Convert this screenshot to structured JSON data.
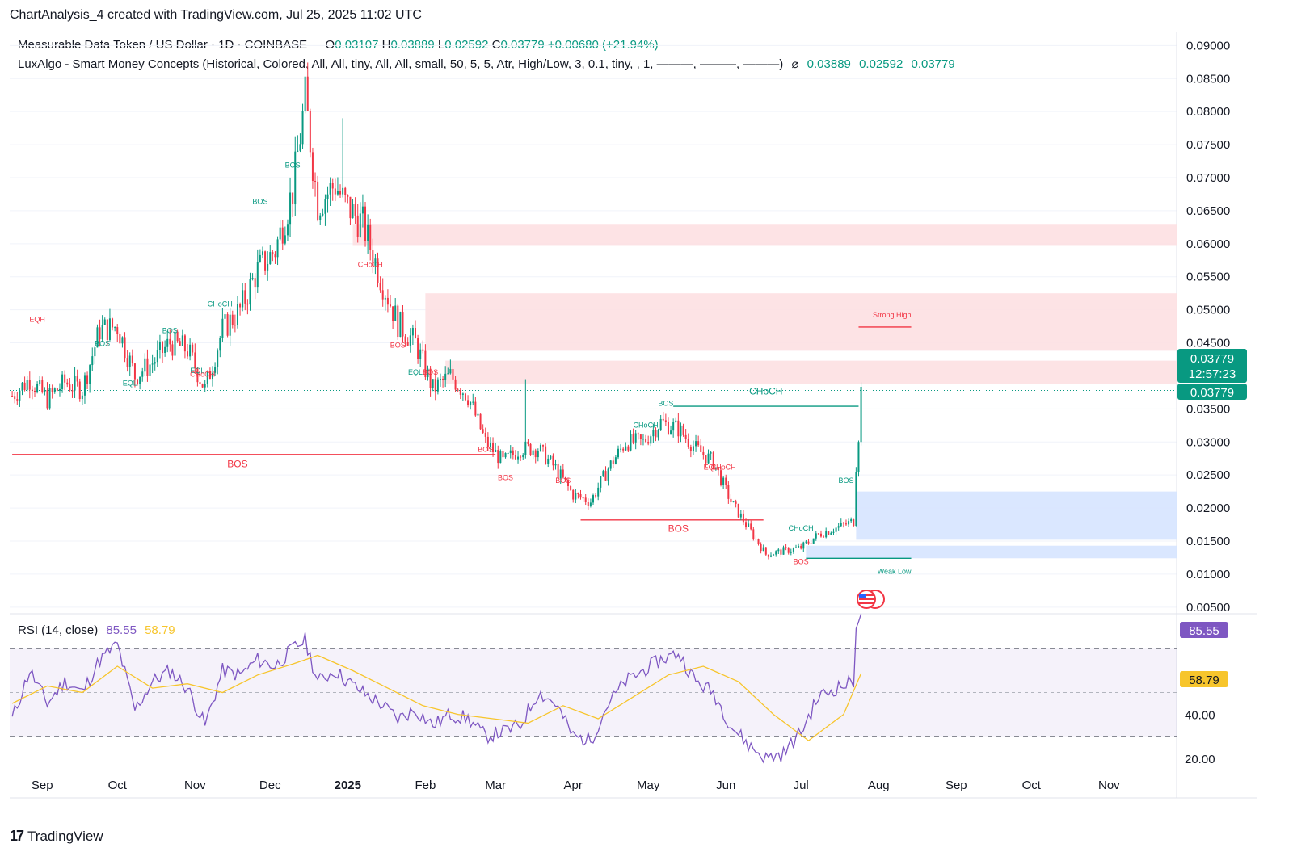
{
  "header": {
    "title": "ChartAnalysis_4 created with TradingView.com, Jul 25, 2025 11:02 UTC"
  },
  "legend": {
    "symbol": "Measurable Data Token / US Dollar · 1D · COINBASE",
    "open_label": "O",
    "open": "0.03107",
    "high_label": "H",
    "high": "0.03889",
    "low_label": "L",
    "low": "0.02592",
    "close_label": "C",
    "close": "0.03779",
    "change": "+0.00680 (+21.94%)",
    "indicator": "LuxAlgo - Smart Money Concepts (Historical, Colored, All, All, tiny, All, All, small, 50, 5, 5, Atr, High/Low, 3, 0.1, tiny, , 1, ———, ———, ———)",
    "indicator_symbol": "⌀",
    "indicator_values": [
      "0.03889",
      "0.02592",
      "0.03779"
    ]
  },
  "rsi_legend": {
    "name": "RSI (14, close)",
    "value": "85.55",
    "ma": "58.79"
  },
  "price_badges": {
    "last": "0.03779",
    "countdown": "12:57:23",
    "line": "0.03779"
  },
  "rsi_badges": {
    "rsi": "85.55",
    "ma": "58.79"
  },
  "footer": {
    "brand": "TradingView",
    "brand_mark": "17"
  },
  "colors": {
    "up": "#089981",
    "down": "#f23645",
    "rsi": "#7e57c2",
    "rsi_ma": "#f7c52c",
    "bull_zone": "#d6e4ff",
    "bear_zone": "#fde0e2"
  },
  "chart_data": {
    "type": "candlestick",
    "price_axis": {
      "ticks": [
        "0.09000",
        "0.08500",
        "0.08000",
        "0.07500",
        "0.07000",
        "0.06500",
        "0.06000",
        "0.05500",
        "0.05000",
        "0.04500",
        "0.03500",
        "0.03000",
        "0.02500",
        "0.02000",
        "0.01500",
        "0.01000",
        "0.00500"
      ],
      "range": [
        0.004,
        0.092
      ]
    },
    "time_axis": [
      "Sep",
      "Oct",
      "Nov",
      "Dec",
      "2025",
      "Feb",
      "Mar",
      "Apr",
      "May",
      "Jun",
      "Jul",
      "Aug",
      "Sep",
      "Oct",
      "Nov"
    ],
    "price_path": [
      [
        "2024-08-20",
        0.037
      ],
      [
        "2024-08-27",
        0.0395
      ],
      [
        "2024-09-03",
        0.0365
      ],
      [
        "2024-09-10",
        0.039
      ],
      [
        "2024-09-17",
        0.038
      ],
      [
        "2024-09-24",
        0.047
      ],
      [
        "2024-10-01",
        0.0475
      ],
      [
        "2024-10-08",
        0.04
      ],
      [
        "2024-10-15",
        0.042
      ],
      [
        "2024-10-22",
        0.045
      ],
      [
        "2024-10-29",
        0.044
      ],
      [
        "2024-11-05",
        0.038
      ],
      [
        "2024-11-12",
        0.047
      ],
      [
        "2024-11-19",
        0.05
      ],
      [
        "2024-11-26",
        0.056
      ],
      [
        "2024-12-03",
        0.059
      ],
      [
        "2024-12-10",
        0.068
      ],
      [
        "2024-12-15",
        0.082
      ],
      [
        "2024-12-20",
        0.066
      ],
      [
        "2024-12-27",
        0.069
      ],
      [
        "2024-12-31",
        0.066
      ],
      [
        "2025-01-07",
        0.063
      ],
      [
        "2025-01-14",
        0.055
      ],
      [
        "2025-01-21",
        0.048
      ],
      [
        "2025-01-28",
        0.045
      ],
      [
        "2025-02-04",
        0.038
      ],
      [
        "2025-02-11",
        0.04
      ],
      [
        "2025-02-18",
        0.037
      ],
      [
        "2025-02-25",
        0.03
      ],
      [
        "2025-03-04",
        0.027
      ],
      [
        "2025-03-11",
        0.029
      ],
      [
        "2025-03-18",
        0.029
      ],
      [
        "2025-03-25",
        0.026
      ],
      [
        "2025-04-01",
        0.022
      ],
      [
        "2025-04-08",
        0.021
      ],
      [
        "2025-04-15",
        0.026
      ],
      [
        "2025-04-22",
        0.03
      ],
      [
        "2025-04-29",
        0.03
      ],
      [
        "2025-05-06",
        0.033
      ],
      [
        "2025-05-13",
        0.032
      ],
      [
        "2025-05-20",
        0.029
      ],
      [
        "2025-05-27",
        0.027
      ],
      [
        "2025-06-03",
        0.021
      ],
      [
        "2025-06-10",
        0.017
      ],
      [
        "2025-06-17",
        0.013
      ],
      [
        "2025-06-24",
        0.0135
      ],
      [
        "2025-07-01",
        0.014
      ],
      [
        "2025-07-08",
        0.016
      ],
      [
        "2025-07-15",
        0.017
      ],
      [
        "2025-07-22",
        0.018
      ],
      [
        "2025-07-23",
        0.0265
      ],
      [
        "2025-07-24",
        0.0311
      ],
      [
        "2025-07-25",
        0.03779
      ]
    ],
    "spikes": [
      [
        "2024-12-15",
        0.085
      ],
      [
        "2024-12-30",
        0.079
      ],
      [
        "2025-03-13",
        0.0395
      ]
    ],
    "zones": [
      {
        "kind": "bearish",
        "from": "2025-01-03",
        "bottom": 0.0598,
        "top": 0.063
      },
      {
        "kind": "bearish",
        "from": "2025-02-01",
        "bottom": 0.0438,
        "top": 0.0525
      },
      {
        "kind": "bearish",
        "from": "2025-02-09",
        "bottom": 0.0388,
        "top": 0.0423
      },
      {
        "kind": "bullish",
        "from": "2025-07-23",
        "bottom": 0.0152,
        "top": 0.0225
      },
      {
        "kind": "bullish",
        "from": "2025-07-03",
        "bottom": 0.0124,
        "top": 0.0143
      }
    ],
    "levels": [
      {
        "label": "BOS",
        "price": 0.0281,
        "from": "2024-08-20",
        "to": "2025-03-01",
        "color": "down"
      },
      {
        "label": "BOS",
        "price": 0.0182,
        "from": "2025-04-04",
        "to": "2025-06-16",
        "color": "down"
      },
      {
        "label": "CHoCH",
        "price": 0.0354,
        "from": "2025-05-11",
        "to": "2025-07-24",
        "color": "up"
      },
      {
        "label": "Strong High",
        "price": 0.0474,
        "from": "2025-07-24",
        "to": "2025-08-14",
        "color": "down"
      },
      {
        "label": "Weak Low",
        "price": 0.0124,
        "from": "2025-07-03",
        "to": "2025-08-14",
        "color": "up"
      }
    ],
    "annotations": [
      {
        "text": "EQH",
        "date": "2024-08-30",
        "price": 0.0482,
        "color": "down"
      },
      {
        "text": "BOS",
        "date": "2024-09-25",
        "price": 0.0445,
        "color": "up"
      },
      {
        "text": "EQL",
        "date": "2024-10-06",
        "price": 0.0385,
        "color": "up"
      },
      {
        "text": "BOS",
        "date": "2024-10-22",
        "price": 0.0465,
        "color": "up"
      },
      {
        "text": "EQL",
        "date": "2024-11-02",
        "price": 0.0404,
        "color": "up"
      },
      {
        "text": "CHoCH",
        "date": "2024-11-04",
        "price": 0.0399,
        "color": "down"
      },
      {
        "text": "CHoCH",
        "date": "2024-11-11",
        "price": 0.0505,
        "color": "up"
      },
      {
        "text": "BOS",
        "date": "2024-11-27",
        "price": 0.066,
        "color": "up"
      },
      {
        "text": "BOS",
        "date": "2024-12-10",
        "price": 0.0715,
        "color": "up"
      },
      {
        "text": "CHoCH",
        "date": "2025-01-10",
        "price": 0.0565,
        "color": "down"
      },
      {
        "text": "BOS",
        "date": "2025-01-21",
        "price": 0.0443,
        "color": "down"
      },
      {
        "text": "EQL",
        "date": "2025-01-28",
        "price": 0.0402,
        "color": "up"
      },
      {
        "text": "BOS",
        "date": "2025-02-03",
        "price": 0.0402,
        "color": "down"
      },
      {
        "text": "BOS",
        "date": "2025-02-25",
        "price": 0.0285,
        "color": "down"
      },
      {
        "text": "BOS",
        "date": "2025-03-05",
        "price": 0.0242,
        "color": "down"
      },
      {
        "text": "BOS",
        "date": "2025-03-28",
        "price": 0.0238,
        "color": "down"
      },
      {
        "text": "CHoCH",
        "date": "2025-04-30",
        "price": 0.0322,
        "color": "up"
      },
      {
        "text": "BOS",
        "date": "2025-05-08",
        "price": 0.0355,
        "color": "up"
      },
      {
        "text": "EQL",
        "date": "2025-05-26",
        "price": 0.0258,
        "color": "down"
      },
      {
        "text": "CHoCH",
        "date": "2025-05-31",
        "price": 0.0258,
        "color": "down"
      },
      {
        "text": "CHoCH",
        "date": "2025-07-01",
        "price": 0.0166,
        "color": "up"
      },
      {
        "text": "BOS",
        "date": "2025-07-01",
        "price": 0.0115,
        "color": "down"
      },
      {
        "text": "BOS",
        "date": "2025-07-19",
        "price": 0.0238,
        "color": "up"
      }
    ],
    "big_labels": [
      {
        "text": "BOS",
        "date": "2024-11-18",
        "price": 0.0262,
        "color": "down"
      },
      {
        "text": "BOS",
        "date": "2025-05-13",
        "price": 0.0164,
        "color": "down"
      },
      {
        "text": "CHoCH",
        "date": "2025-06-17",
        "price": 0.0372,
        "color": "up"
      }
    ],
    "rsi": {
      "axis_ticks": [
        "80.00",
        "40.00",
        "20.00"
      ],
      "range": [
        14,
        86
      ],
      "bands": [
        30,
        70
      ],
      "mid": 50,
      "rsi_path": [
        [
          "2024-08-20",
          38
        ],
        [
          "2024-08-27",
          60
        ],
        [
          "2024-09-03",
          45
        ],
        [
          "2024-09-10",
          55
        ],
        [
          "2024-09-17",
          50
        ],
        [
          "2024-09-24",
          65
        ],
        [
          "2024-10-01",
          72
        ],
        [
          "2024-10-08",
          42
        ],
        [
          "2024-10-15",
          55
        ],
        [
          "2024-10-22",
          60
        ],
        [
          "2024-10-29",
          52
        ],
        [
          "2024-11-05",
          35
        ],
        [
          "2024-11-12",
          60
        ],
        [
          "2024-11-19",
          58
        ],
        [
          "2024-11-26",
          65
        ],
        [
          "2024-12-03",
          62
        ],
        [
          "2024-12-10",
          70
        ],
        [
          "2024-12-15",
          74
        ],
        [
          "2024-12-20",
          55
        ],
        [
          "2024-12-27",
          60
        ],
        [
          "2024-12-31",
          56
        ],
        [
          "2025-01-07",
          50
        ],
        [
          "2025-01-14",
          45
        ],
        [
          "2025-01-21",
          38
        ],
        [
          "2025-01-28",
          42
        ],
        [
          "2025-02-04",
          35
        ],
        [
          "2025-02-11",
          40
        ],
        [
          "2025-02-18",
          38
        ],
        [
          "2025-02-25",
          30
        ],
        [
          "2025-03-04",
          32
        ],
        [
          "2025-03-11",
          35
        ],
        [
          "2025-03-18",
          50
        ],
        [
          "2025-03-25",
          45
        ],
        [
          "2025-04-01",
          30
        ],
        [
          "2025-04-08",
          28
        ],
        [
          "2025-04-15",
          45
        ],
        [
          "2025-04-22",
          55
        ],
        [
          "2025-04-29",
          60
        ],
        [
          "2025-05-06",
          65
        ],
        [
          "2025-05-13",
          68
        ],
        [
          "2025-05-20",
          55
        ],
        [
          "2025-05-27",
          50
        ],
        [
          "2025-06-03",
          35
        ],
        [
          "2025-06-10",
          26
        ],
        [
          "2025-06-17",
          20
        ],
        [
          "2025-06-24",
          22
        ],
        [
          "2025-07-01",
          32
        ],
        [
          "2025-07-08",
          48
        ],
        [
          "2025-07-15",
          52
        ],
        [
          "2025-07-22",
          55
        ],
        [
          "2025-07-23",
          82
        ],
        [
          "2025-07-25",
          85.55
        ]
      ],
      "ma_path": [
        [
          "2024-08-20",
          45
        ],
        [
          "2024-09-03",
          53
        ],
        [
          "2024-09-17",
          50
        ],
        [
          "2024-10-01",
          62
        ],
        [
          "2024-10-15",
          52
        ],
        [
          "2024-10-29",
          54
        ],
        [
          "2024-11-12",
          50
        ],
        [
          "2024-11-26",
          58
        ],
        [
          "2024-12-10",
          63
        ],
        [
          "2024-12-20",
          67
        ],
        [
          "2025-01-03",
          60
        ],
        [
          "2025-01-17",
          52
        ],
        [
          "2025-01-31",
          44
        ],
        [
          "2025-02-14",
          40
        ],
        [
          "2025-02-28",
          38
        ],
        [
          "2025-03-14",
          36
        ],
        [
          "2025-03-28",
          44
        ],
        [
          "2025-04-11",
          38
        ],
        [
          "2025-04-25",
          48
        ],
        [
          "2025-05-09",
          58
        ],
        [
          "2025-05-23",
          62
        ],
        [
          "2025-06-06",
          55
        ],
        [
          "2025-06-20",
          40
        ],
        [
          "2025-07-04",
          28
        ],
        [
          "2025-07-18",
          40
        ],
        [
          "2025-07-25",
          58.79
        ]
      ]
    }
  }
}
